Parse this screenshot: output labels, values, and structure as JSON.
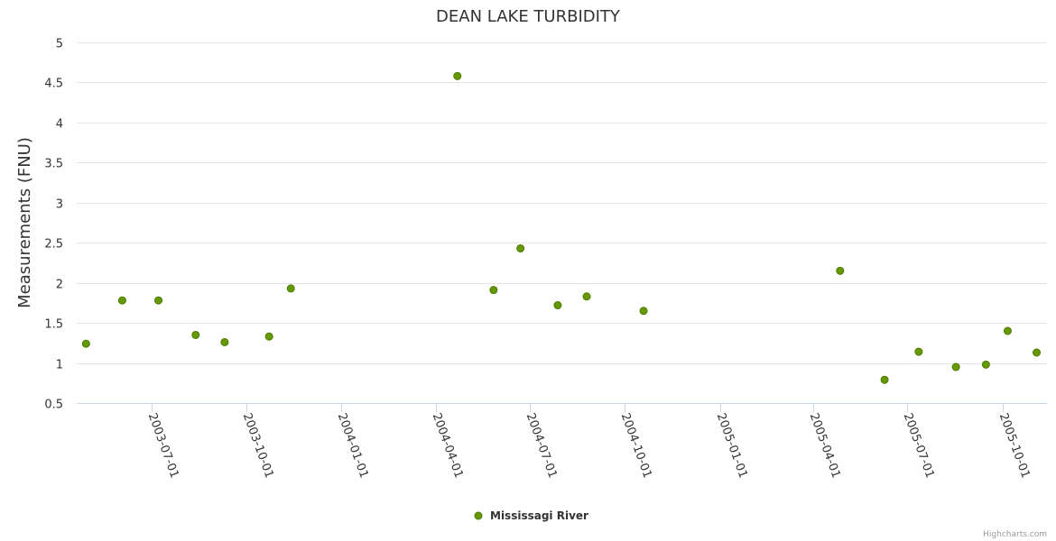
{
  "chart_data": {
    "type": "scatter",
    "title": "DEAN LAKE TURBIDITY",
    "xlabel": "",
    "ylabel": "Measurements (FNU)",
    "xlim": [
      "2003-04-20",
      "2005-11-13"
    ],
    "ylim": [
      0.5,
      5
    ],
    "yticks": [
      "0.5",
      "1",
      "1.5",
      "2",
      "2.5",
      "3",
      "3.5",
      "4",
      "4.5",
      "5"
    ],
    "xticks": [
      "2003-07-01",
      "2003-10-01",
      "2004-01-01",
      "2004-04-01",
      "2004-07-01",
      "2004-10-01",
      "2005-01-01",
      "2005-04-01",
      "2005-07-01",
      "2005-10-01"
    ],
    "grid": true,
    "legend_position": "bottom-center",
    "series": [
      {
        "name": "Mississagi River",
        "color": "#669900",
        "points": [
          {
            "x": "2003-04-29",
            "y": 1.24
          },
          {
            "x": "2003-06-03",
            "y": 1.78
          },
          {
            "x": "2003-07-08",
            "y": 1.78
          },
          {
            "x": "2003-08-13",
            "y": 1.35
          },
          {
            "x": "2003-09-10",
            "y": 1.26
          },
          {
            "x": "2003-10-23",
            "y": 1.33
          },
          {
            "x": "2003-11-13",
            "y": 1.93
          },
          {
            "x": "2004-04-22",
            "y": 4.58
          },
          {
            "x": "2004-05-27",
            "y": 1.91
          },
          {
            "x": "2004-06-22",
            "y": 2.43
          },
          {
            "x": "2004-07-28",
            "y": 1.72
          },
          {
            "x": "2004-08-25",
            "y": 1.83
          },
          {
            "x": "2004-10-19",
            "y": 1.65
          },
          {
            "x": "2005-04-27",
            "y": 2.15
          },
          {
            "x": "2005-06-09",
            "y": 0.79
          },
          {
            "x": "2005-07-12",
            "y": 1.14
          },
          {
            "x": "2005-08-17",
            "y": 0.95
          },
          {
            "x": "2005-09-15",
            "y": 0.98
          },
          {
            "x": "2005-10-06",
            "y": 1.4
          },
          {
            "x": "2005-11-03",
            "y": 1.13
          }
        ]
      }
    ]
  },
  "credits": "Highcharts.com"
}
